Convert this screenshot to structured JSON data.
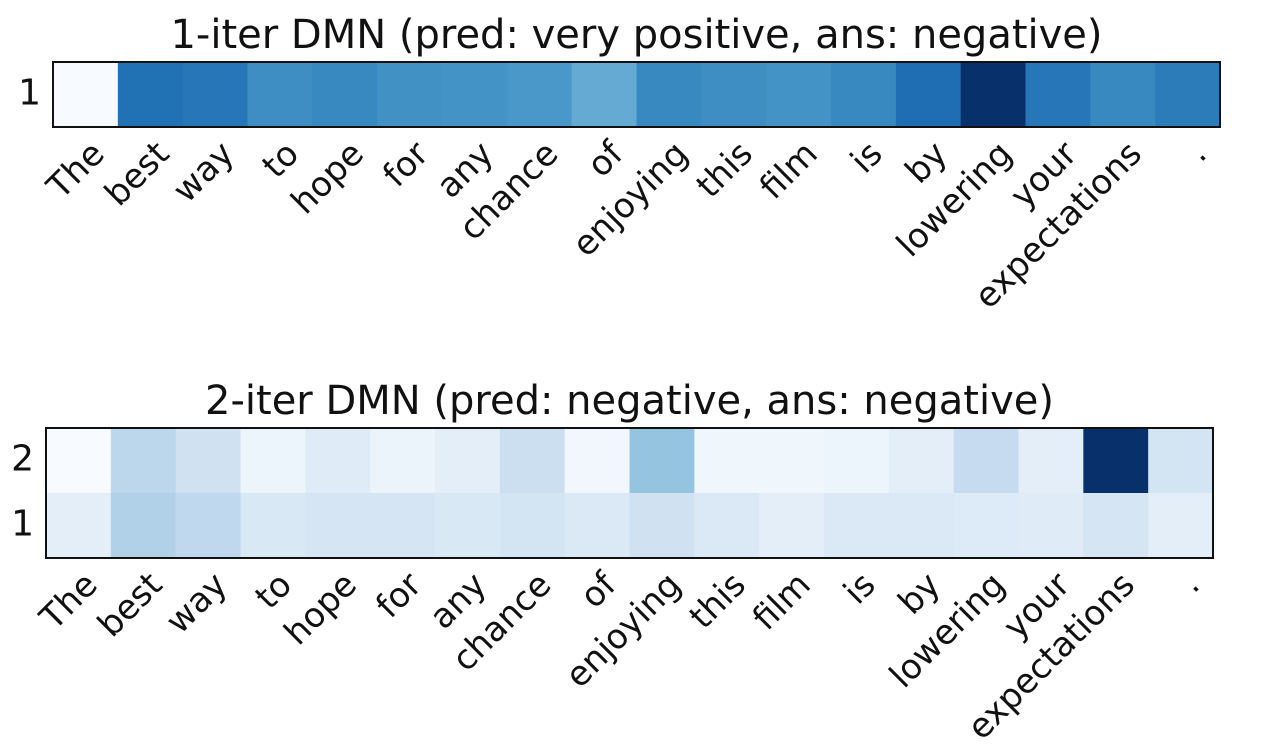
{
  "chart_data": [
    {
      "type": "heatmap",
      "title": "1-iter DMN (pred: very positive, ans: negative)",
      "colormap": "Blues",
      "x_categories": [
        "The",
        "best",
        "way",
        "to",
        "hope",
        "for",
        "any",
        "chance",
        "of",
        "enjoying",
        "this",
        "film",
        "is",
        "by",
        "lowering",
        "your",
        "expectations",
        "."
      ],
      "y_categories": [
        "1"
      ],
      "values": [
        [
          0,
          0.75,
          0.73,
          0.64,
          0.66,
          0.63,
          0.62,
          0.6,
          0.52,
          0.66,
          0.64,
          0.62,
          0.66,
          0.76,
          1.0,
          0.73,
          0.66,
          0.71
        ]
      ]
    },
    {
      "type": "heatmap",
      "title": "2-iter DMN (pred: negative, ans: negative)",
      "colormap": "Blues",
      "x_categories": [
        "The",
        "best",
        "way",
        "to",
        "hope",
        "for",
        "any",
        "chance",
        "of",
        "enjoying",
        "this",
        "film",
        "is",
        "by",
        "lowering",
        "your",
        "expectations",
        "."
      ],
      "y_categories": [
        "2",
        "1"
      ],
      "values": [
        [
          0,
          0.28,
          0.2,
          0.05,
          0.12,
          0.06,
          0.1,
          0.22,
          0.03,
          0.4,
          0.04,
          0.04,
          0.05,
          0.1,
          0.25,
          0.1,
          1.0,
          0.18
        ],
        [
          0.1,
          0.32,
          0.27,
          0.15,
          0.17,
          0.17,
          0.15,
          0.18,
          0.14,
          0.2,
          0.14,
          0.1,
          0.14,
          0.14,
          0.13,
          0.12,
          0.17,
          0.1
        ]
      ]
    }
  ]
}
